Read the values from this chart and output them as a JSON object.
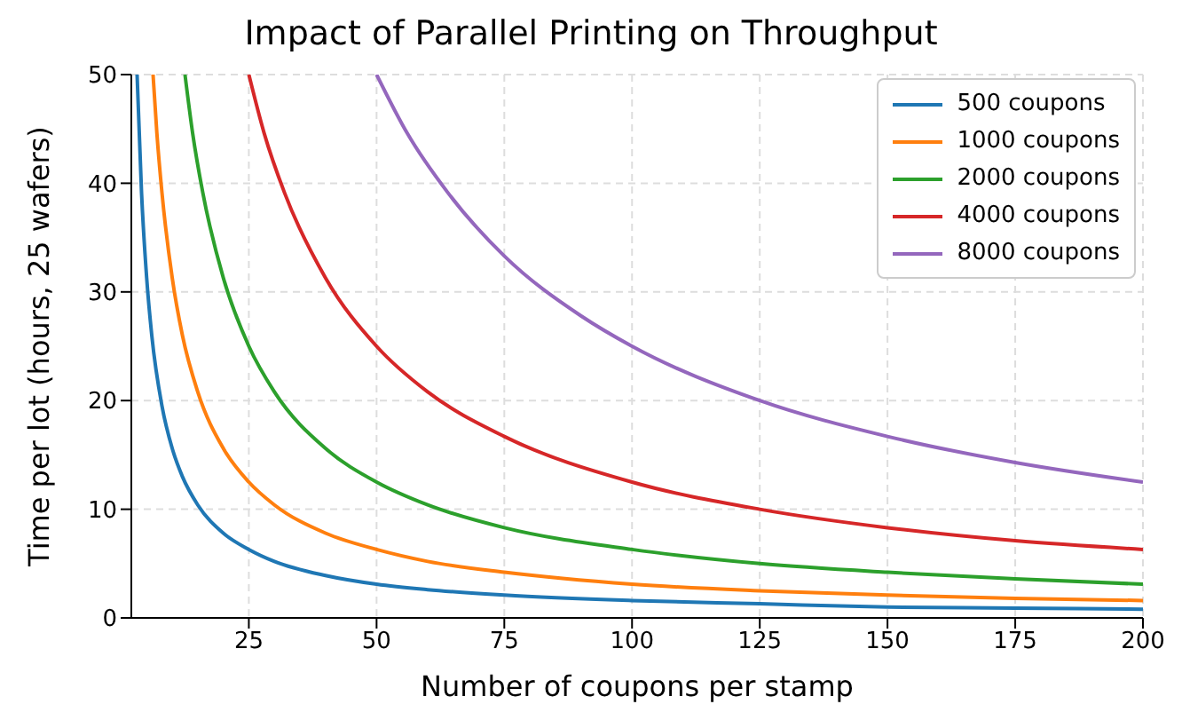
{
  "chart_data": {
    "type": "line",
    "title": "Impact of Parallel Printing on Throughput",
    "xlabel": "Number of coupons per stamp",
    "ylabel": "Time per lot (hours, 25 wafers)",
    "xlim": [
      2,
      200
    ],
    "xticks": [
      25,
      50,
      75,
      100,
      125,
      150,
      175,
      200
    ],
    "ylim": [
      0,
      50
    ],
    "yticks": [
      0,
      10,
      20,
      30,
      40,
      50
    ],
    "grid": true,
    "legend": "top right",
    "marker": "none",
    "line_style": "solid",
    "series": [
      {
        "name": "500 coupons",
        "color": "#1f77b4",
        "x": [
          3.125,
          4,
          5,
          6,
          8,
          10,
          12,
          15,
          20,
          25,
          30,
          40,
          50,
          60,
          75,
          100,
          125,
          150,
          175,
          200
        ],
        "values": [
          50,
          39.1,
          31.3,
          26,
          19.5,
          15.6,
          13,
          10.4,
          7.8,
          6.3,
          5.2,
          3.9,
          3.1,
          2.6,
          2.1,
          1.6,
          1.3,
          1,
          0.9,
          0.8
        ]
      },
      {
        "name": "1000 coupons",
        "color": "#ff7f0e",
        "x": [
          6.25,
          7,
          8,
          10,
          12,
          15,
          20,
          25,
          30,
          40,
          50,
          60,
          75,
          100,
          125,
          150,
          175,
          200
        ],
        "values": [
          50,
          44.6,
          39.1,
          31.3,
          26,
          20.8,
          15.6,
          12.5,
          10.4,
          7.8,
          6.3,
          5.2,
          4.2,
          3.1,
          2.5,
          2.1,
          1.8,
          1.6
        ]
      },
      {
        "name": "2000 coupons",
        "color": "#2ca02c",
        "x": [
          12.5,
          14,
          16,
          20,
          25,
          30,
          40,
          50,
          60,
          75,
          100,
          125,
          150,
          175,
          200
        ],
        "values": [
          50,
          44.6,
          39.1,
          31.3,
          25,
          20.8,
          15.6,
          12.5,
          10.4,
          8.3,
          6.3,
          5,
          4.2,
          3.6,
          3.1
        ]
      },
      {
        "name": "4000 coupons",
        "color": "#d62728",
        "x": [
          25,
          28,
          32,
          40,
          50,
          60,
          75,
          100,
          125,
          150,
          175,
          200
        ],
        "values": [
          50,
          44.6,
          39.1,
          31.3,
          25,
          20.8,
          16.7,
          12.5,
          10,
          8.3,
          7.1,
          6.3
        ]
      },
      {
        "name": "8000 coupons",
        "color": "#9467bd",
        "x": [
          50,
          56,
          64,
          75,
          90,
          100,
          125,
          150,
          175,
          200
        ],
        "values": [
          50,
          44.6,
          39.1,
          33.3,
          27.8,
          25,
          20,
          16.7,
          14.3,
          12.5
        ]
      }
    ]
  }
}
